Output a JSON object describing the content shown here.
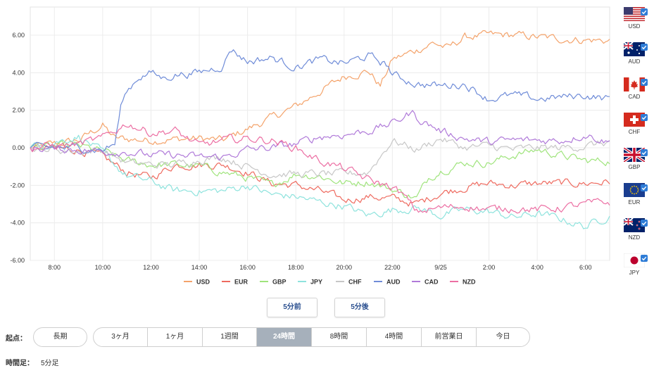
{
  "chart_data": {
    "type": "line",
    "ylim": [
      -6.0,
      7.5
    ],
    "y_ticks": [
      "6.00",
      "4.00",
      "2.00",
      "0.00",
      "-2.00",
      "-4.00",
      "-6.00"
    ],
    "y_tick_values": [
      6,
      4,
      2,
      0,
      -2,
      -4,
      -6
    ],
    "x_ticks": [
      "8:00",
      "10:00",
      "12:00",
      "14:00",
      "16:00",
      "18:00",
      "20:00",
      "22:00",
      "9/25",
      "2:00",
      "4:00",
      "6:00"
    ],
    "x_tick_positions_hours": [
      1,
      3,
      5,
      7,
      9,
      11,
      13,
      15,
      17,
      19,
      21,
      23
    ],
    "x_range_hours": [
      0,
      24
    ],
    "interval_minutes": 5,
    "series": [
      {
        "name": "USD",
        "color": "#f4a36b",
        "keyframes": [
          [
            0,
            0
          ],
          [
            2,
            0.4
          ],
          [
            3,
            1.2
          ],
          [
            3.5,
            0.5
          ],
          [
            5,
            0.4
          ],
          [
            7,
            0.5
          ],
          [
            8,
            0.4
          ],
          [
            9,
            1.0
          ],
          [
            10,
            1.6
          ],
          [
            11,
            2.2
          ],
          [
            12,
            3.0
          ],
          [
            13,
            3.8
          ],
          [
            14,
            4.1
          ],
          [
            14.5,
            3.3
          ],
          [
            15,
            4.7
          ],
          [
            16,
            5.2
          ],
          [
            16.7,
            5.6
          ],
          [
            17.3,
            5.3
          ],
          [
            18,
            5.9
          ],
          [
            19,
            6.0
          ],
          [
            20,
            6.0
          ],
          [
            21,
            5.9
          ],
          [
            22,
            5.8
          ],
          [
            24,
            5.7
          ]
        ]
      },
      {
        "name": "EUR",
        "color": "#ee6a5f",
        "keyframes": [
          [
            0,
            0
          ],
          [
            2,
            -0.1
          ],
          [
            3,
            -0.5
          ],
          [
            4,
            -1.3
          ],
          [
            5,
            -1.6
          ],
          [
            6,
            -0.9
          ],
          [
            7,
            -0.9
          ],
          [
            8,
            -0.9
          ],
          [
            9,
            -1.3
          ],
          [
            10,
            -1.9
          ],
          [
            11,
            -2.0
          ],
          [
            12,
            -2.3
          ],
          [
            13,
            -2.8
          ],
          [
            14,
            -2.6
          ],
          [
            15,
            -2.7
          ],
          [
            16,
            -3.0
          ],
          [
            17,
            -2.4
          ],
          [
            18,
            -2.1
          ],
          [
            19,
            -1.9
          ],
          [
            20,
            -2.0
          ],
          [
            21,
            -1.9
          ],
          [
            22,
            -1.9
          ],
          [
            23,
            -1.9
          ],
          [
            24,
            -1.8
          ]
        ]
      },
      {
        "name": "GBP",
        "color": "#9fe47c",
        "keyframes": [
          [
            0,
            0
          ],
          [
            2,
            0.1
          ],
          [
            3,
            -0.2
          ],
          [
            4,
            -0.7
          ],
          [
            5,
            -0.9
          ],
          [
            6,
            -0.9
          ],
          [
            7,
            -1.0
          ],
          [
            8,
            -1.3
          ],
          [
            9,
            -1.6
          ],
          [
            10,
            -2.0
          ],
          [
            11,
            -1.4
          ],
          [
            12,
            -1.5
          ],
          [
            13,
            -1.9
          ],
          [
            14,
            -1.8
          ],
          [
            15,
            -2.2
          ],
          [
            16,
            -2.7
          ],
          [
            16.5,
            -1.6
          ],
          [
            17,
            -1.2
          ],
          [
            18,
            -0.8
          ],
          [
            19,
            -0.8
          ],
          [
            20,
            -0.4
          ],
          [
            21,
            -0.1
          ],
          [
            22,
            -0.4
          ],
          [
            23,
            -0.7
          ],
          [
            24,
            -0.7
          ]
        ]
      },
      {
        "name": "JPY",
        "color": "#8ee3dd",
        "keyframes": [
          [
            0,
            0
          ],
          [
            2,
            0.6
          ],
          [
            2.5,
            0.2
          ],
          [
            3,
            -0.3
          ],
          [
            4,
            -1.5
          ],
          [
            5,
            -1.8
          ],
          [
            6,
            -2.3
          ],
          [
            7,
            -2.3
          ],
          [
            8,
            -2.3
          ],
          [
            9,
            -2.0
          ],
          [
            10,
            -2.5
          ],
          [
            11,
            -2.6
          ],
          [
            12,
            -2.9
          ],
          [
            13,
            -3.1
          ],
          [
            14,
            -3.6
          ],
          [
            15,
            -3.3
          ],
          [
            16,
            -3.2
          ],
          [
            17,
            -3.6
          ],
          [
            18,
            -3.3
          ],
          [
            19,
            -3.4
          ],
          [
            20,
            -3.7
          ],
          [
            21,
            -3.5
          ],
          [
            22,
            -3.8
          ],
          [
            23,
            -4.2
          ],
          [
            24,
            -3.6
          ]
        ]
      },
      {
        "name": "CHF",
        "color": "#c7c7c7",
        "keyframes": [
          [
            0,
            0
          ],
          [
            2,
            -0.2
          ],
          [
            3,
            -0.1
          ],
          [
            4,
            -0.8
          ],
          [
            5,
            -0.9
          ],
          [
            6,
            -0.9
          ],
          [
            7,
            -0.6
          ],
          [
            8,
            -0.5
          ],
          [
            9,
            -1.0
          ],
          [
            10,
            -1.4
          ],
          [
            11,
            -1.4
          ],
          [
            12,
            -1.4
          ],
          [
            13,
            -1.4
          ],
          [
            14,
            -1.3
          ],
          [
            15,
            0.4
          ],
          [
            16,
            -0.1
          ],
          [
            17,
            0.5
          ],
          [
            18,
            0.0
          ],
          [
            19,
            0.1
          ],
          [
            20,
            -0.1
          ],
          [
            21,
            0.0
          ],
          [
            22,
            0.0
          ],
          [
            23,
            0.1
          ],
          [
            24,
            0.3
          ]
        ]
      },
      {
        "name": "AUD",
        "color": "#6f8cd8",
        "keyframes": [
          [
            0,
            0
          ],
          [
            2,
            0.0
          ],
          [
            3,
            -0.1
          ],
          [
            3.5,
            0.2
          ],
          [
            3.8,
            2.5
          ],
          [
            4,
            3.0
          ],
          [
            4.5,
            3.8
          ],
          [
            5,
            4.0
          ],
          [
            5.5,
            3.7
          ],
          [
            6,
            3.9
          ],
          [
            7,
            4.0
          ],
          [
            8,
            4.4
          ],
          [
            8.3,
            5.3
          ],
          [
            9,
            4.6
          ],
          [
            10,
            4.8
          ],
          [
            11,
            4.3
          ],
          [
            12,
            4.7
          ],
          [
            13,
            4.5
          ],
          [
            14,
            4.9
          ],
          [
            14.8,
            4.4
          ],
          [
            15,
            3.9
          ],
          [
            16,
            3.4
          ],
          [
            17,
            3.3
          ],
          [
            18,
            3.4
          ],
          [
            19,
            2.6
          ],
          [
            20,
            2.8
          ],
          [
            21,
            2.6
          ],
          [
            22,
            2.7
          ],
          [
            23,
            2.8
          ],
          [
            24,
            2.6
          ]
        ]
      },
      {
        "name": "CAD",
        "color": "#b07ad9",
        "keyframes": [
          [
            0,
            0
          ],
          [
            2,
            -0.1
          ],
          [
            3,
            -0.2
          ],
          [
            4,
            -0.2
          ],
          [
            5,
            -0.4
          ],
          [
            6,
            -0.4
          ],
          [
            7,
            -0.5
          ],
          [
            8,
            -0.5
          ],
          [
            9,
            -0.1
          ],
          [
            10,
            0.0
          ],
          [
            11,
            0.2
          ],
          [
            12,
            0.6
          ],
          [
            13,
            0.7
          ],
          [
            14,
            0.9
          ],
          [
            15,
            1.3
          ],
          [
            15.8,
            1.9
          ],
          [
            16,
            1.6
          ],
          [
            17,
            0.9
          ],
          [
            18,
            0.5
          ],
          [
            19,
            0.3
          ],
          [
            20,
            0.4
          ],
          [
            21,
            0.4
          ],
          [
            22,
            0.4
          ],
          [
            23,
            0.7
          ],
          [
            24,
            0.3
          ]
        ]
      },
      {
        "name": "NZD",
        "color": "#ec6fa3",
        "keyframes": [
          [
            0,
            0
          ],
          [
            2,
            0.2
          ],
          [
            3,
            0.5
          ],
          [
            4,
            1.3
          ],
          [
            5,
            0.8
          ],
          [
            6,
            0.9
          ],
          [
            7,
            0.1
          ],
          [
            8,
            0.4
          ],
          [
            9,
            0.5
          ],
          [
            10,
            0.4
          ],
          [
            11,
            0.0
          ],
          [
            12,
            -0.7
          ],
          [
            13,
            -1.1
          ],
          [
            14,
            -1.7
          ],
          [
            15,
            -2.1
          ],
          [
            15.5,
            -2.6
          ],
          [
            16,
            -3.4
          ],
          [
            17,
            -3.2
          ],
          [
            18,
            -3.1
          ],
          [
            19,
            -3.3
          ],
          [
            20,
            -3.2
          ],
          [
            21,
            -3.3
          ],
          [
            22,
            -3.2
          ],
          [
            23,
            -3.0
          ],
          [
            24,
            -2.9
          ]
        ]
      }
    ]
  },
  "sidebar": {
    "flags": [
      {
        "code": "USD",
        "icon": "us-flag-icon"
      },
      {
        "code": "AUD",
        "icon": "au-flag-icon"
      },
      {
        "code": "CAD",
        "icon": "ca-flag-icon"
      },
      {
        "code": "CHF",
        "icon": "ch-flag-icon"
      },
      {
        "code": "GBP",
        "icon": "gb-flag-icon"
      },
      {
        "code": "EUR",
        "icon": "eu-flag-icon"
      },
      {
        "code": "NZD",
        "icon": "nz-flag-icon"
      },
      {
        "code": "JPY",
        "icon": "jp-flag-icon"
      }
    ]
  },
  "nav": {
    "prev_label": "5分前",
    "next_label": "5分後"
  },
  "period": {
    "label": "起点：",
    "long_label": "長期",
    "options": [
      "3ヶ月",
      "1ヶ月",
      "1週間",
      "24時間",
      "8時間",
      "4時間",
      "前営業日",
      "今日"
    ],
    "active": "24時間"
  },
  "interval": {
    "label": "時間足：",
    "value": "5分足"
  }
}
